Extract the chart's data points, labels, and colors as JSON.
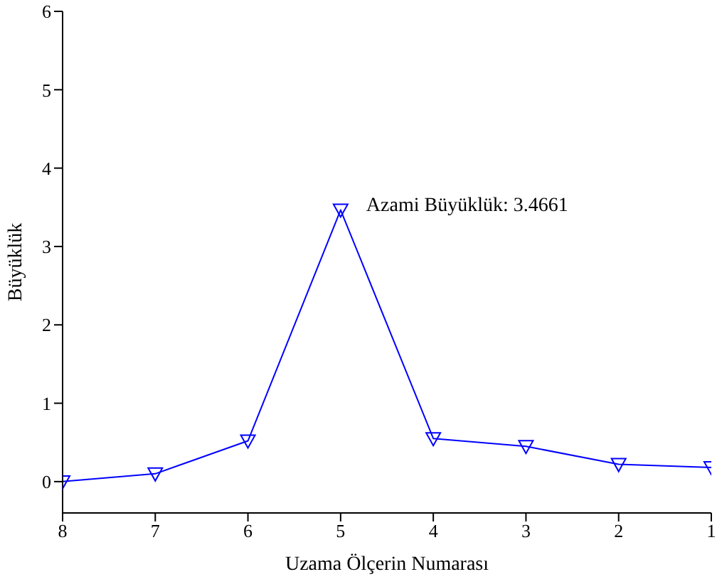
{
  "chart_data": {
    "type": "line",
    "xlabel": "Uzama Ölçerin Numarası",
    "ylabel": "Büyüklük",
    "x": [
      8,
      7,
      6,
      5,
      4,
      3,
      2,
      1
    ],
    "series": [
      {
        "color": "#0000ff",
        "values": [
          0,
          0.1,
          0.52,
          3.4661,
          0.55,
          0.45,
          0.22,
          0.18
        ]
      }
    ],
    "xlim": [
      8,
      1
    ],
    "xticks": [
      8,
      7,
      6,
      5,
      4,
      3,
      2,
      1
    ],
    "ylim": [
      -0.4,
      6
    ],
    "yticks": [
      0,
      1,
      2,
      3,
      4,
      5,
      6
    ],
    "marker": "triangle",
    "grid": false,
    "legend": false,
    "annotations": [
      {
        "text": "Azami Büyüklük: 3.4661",
        "x": 5,
        "y": 3.4661
      }
    ]
  }
}
